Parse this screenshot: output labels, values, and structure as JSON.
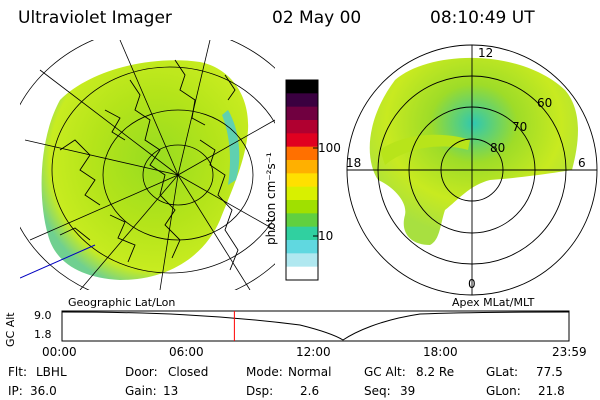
{
  "header": {
    "instrument": "Ultraviolet Imager",
    "date": "02 May 00",
    "time": "08:10:49 UT"
  },
  "colorbar": {
    "unit_label": "photon cm⁻²s⁻¹",
    "ticks": [
      "100",
      "10"
    ],
    "colors": [
      "#000000",
      "#3a0040",
      "#700040",
      "#b00030",
      "#e00020",
      "#ff7000",
      "#ffb000",
      "#ffe000",
      "#d8f000",
      "#a0e000",
      "#60d040",
      "#30d0a0",
      "#60d8e0",
      "#b0e8f0",
      "#ffffff"
    ]
  },
  "left_map": {
    "caption": "Geographic Lat/Lon"
  },
  "right_map": {
    "caption": "Apex MLat/MLT",
    "mlt_labels": {
      "top": "12",
      "left": "18",
      "right": "6",
      "bottom": "0"
    },
    "lat_labels": [
      "60",
      "70",
      "80"
    ]
  },
  "timeline": {
    "axis_label": "GC Alt",
    "y_ticks": [
      "9.0",
      "1.8"
    ],
    "x_ticks": [
      "00:00",
      "06:00",
      "12:00",
      "18:00",
      "23:59"
    ],
    "current_fraction": 0.34
  },
  "footer": {
    "filter_label": "Flt:",
    "filter_value": "LBHL",
    "ip_label": "IP:",
    "ip_value": "36.0",
    "door_label": "Door:",
    "door_value": "Closed",
    "gain_label": "Gain:",
    "gain_value": "13",
    "mode_label": "Mode:",
    "mode_value": "Normal",
    "dsp_label": "Dsp:",
    "dsp_value": "2.6",
    "gcalt_label": "GC Alt:",
    "gcalt_value": "8.2 Re",
    "seq_label": "Seq:",
    "seq_value": "39",
    "glat_label": "GLat:",
    "glat_value": "77.5",
    "glon_label": "GLon:",
    "glon_value": "21.8"
  }
}
